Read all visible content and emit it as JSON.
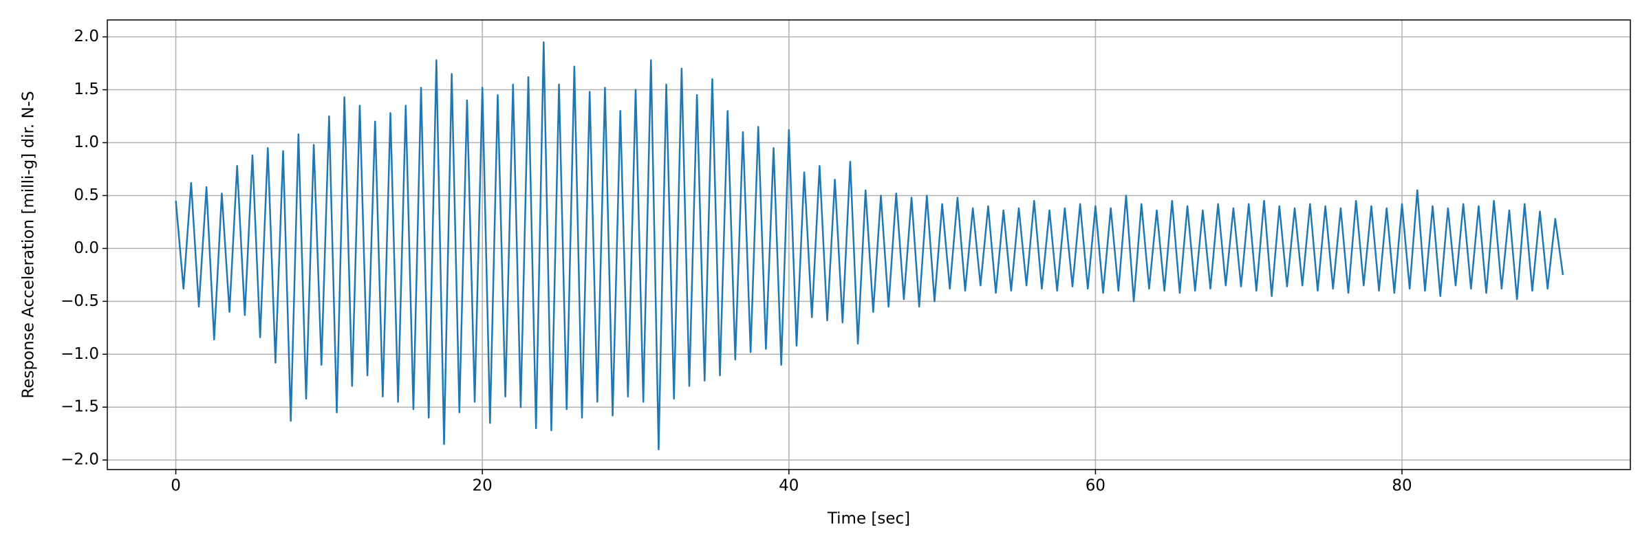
{
  "chart_data": {
    "type": "line",
    "xlabel": "Time [sec]",
    "ylabel": "Response Acceleration [milli-g] dir. N-S",
    "xlim": [
      -4.47,
      94.9
    ],
    "ylim": [
      -2.09,
      2.16
    ],
    "xticks": [
      0,
      20,
      40,
      60,
      80
    ],
    "yticks": [
      {
        "value": -2,
        "label": "−2.0"
      },
      {
        "value": -1.5,
        "label": "−1.5"
      },
      {
        "value": -1,
        "label": "−1.0"
      },
      {
        "value": -0.5,
        "label": "−0.5"
      },
      {
        "value": 0,
        "label": "0.0"
      },
      0.5,
      {
        "value": 1,
        "label": "1.0"
      },
      1.5,
      {
        "value": 2,
        "label": "2.0"
      }
    ],
    "grid": true,
    "x": [
      0,
      0.5,
      1,
      1.5,
      2,
      2.5,
      3,
      3.5,
      4,
      4.5,
      5,
      5.5,
      6,
      6.5,
      7,
      7.5,
      8,
      8.5,
      9,
      9.5,
      10,
      10.5,
      11,
      11.5,
      12,
      12.5,
      13,
      13.5,
      14,
      14.5,
      15,
      15.5,
      16,
      16.5,
      17,
      17.5,
      18,
      18.5,
      19,
      19.5,
      20,
      20.5,
      21,
      21.5,
      22,
      22.5,
      23,
      23.5,
      24,
      24.5,
      25,
      25.5,
      26,
      26.5,
      27,
      27.5,
      28,
      28.5,
      29,
      29.5,
      30,
      30.5,
      31,
      31.5,
      32,
      32.5,
      33,
      33.5,
      34,
      34.5,
      35,
      35.5,
      36,
      36.5,
      37,
      37.5,
      38,
      38.5,
      39,
      39.5,
      40,
      40.5,
      41,
      41.5,
      42,
      42.5,
      43,
      43.5,
      44,
      44.5,
      45,
      45.5,
      46,
      46.5,
      47,
      47.5,
      48,
      48.5,
      49,
      49.5,
      50,
      50.5,
      51,
      51.5,
      52,
      52.5,
      53,
      53.5,
      54,
      54.5,
      55,
      55.5,
      56,
      56.5,
      57,
      57.5,
      58,
      58.5,
      59,
      59.5,
      60,
      60.5,
      61,
      61.5,
      62,
      62.5,
      63,
      63.5,
      64,
      64.5,
      65,
      65.5,
      66,
      66.5,
      67,
      67.5,
      68,
      68.5,
      69,
      69.5,
      70,
      70.5,
      71,
      71.5,
      72,
      72.5,
      73,
      73.5,
      74,
      74.5,
      75,
      75.5,
      76,
      76.5,
      77,
      77.5,
      78,
      78.5,
      79,
      79.5,
      80,
      80.5,
      81,
      81.5,
      82,
      82.5,
      83,
      83.5,
      84,
      84.5,
      85,
      85.5,
      86,
      86.5,
      87,
      87.5,
      88,
      88.5,
      89,
      89.5,
      90,
      90.5
    ],
    "series": [
      {
        "color": "#1f77b4",
        "values": [
          0.45,
          -0.38,
          0.62,
          -0.55,
          0.58,
          -0.86,
          0.52,
          -0.6,
          0.78,
          -0.63,
          0.88,
          -0.84,
          0.95,
          -1.08,
          0.92,
          -1.63,
          1.08,
          -1.42,
          0.98,
          -1.1,
          1.25,
          -1.55,
          1.43,
          -1.3,
          1.35,
          -1.2,
          1.2,
          -1.4,
          1.28,
          -1.45,
          1.35,
          -1.52,
          1.52,
          -1.6,
          1.78,
          -1.85,
          1.65,
          -1.55,
          1.4,
          -1.45,
          1.52,
          -1.65,
          1.45,
          -1.4,
          1.55,
          -1.5,
          1.62,
          -1.7,
          1.95,
          -1.72,
          1.55,
          -1.52,
          1.72,
          -1.6,
          1.48,
          -1.45,
          1.52,
          -1.58,
          1.3,
          -1.4,
          1.5,
          -1.45,
          1.78,
          -1.9,
          1.55,
          -1.42,
          1.7,
          -1.3,
          1.45,
          -1.25,
          1.6,
          -1.2,
          1.3,
          -1.05,
          1.1,
          -0.98,
          1.15,
          -0.95,
          0.95,
          -1.1,
          1.12,
          -0.92,
          0.72,
          -0.65,
          0.78,
          -0.68,
          0.65,
          -0.7,
          0.82,
          -0.9,
          0.55,
          -0.6,
          0.5,
          -0.55,
          0.52,
          -0.48,
          0.48,
          -0.55,
          0.5,
          -0.5,
          0.42,
          -0.38,
          0.48,
          -0.4,
          0.38,
          -0.35,
          0.4,
          -0.42,
          0.36,
          -0.4,
          0.38,
          -0.35,
          0.45,
          -0.38,
          0.36,
          -0.4,
          0.38,
          -0.36,
          0.42,
          -0.38,
          0.4,
          -0.42,
          0.38,
          -0.4,
          0.5,
          -0.5,
          0.42,
          -0.38,
          0.36,
          -0.4,
          0.45,
          -0.42,
          0.4,
          -0.4,
          0.36,
          -0.38,
          0.42,
          -0.35,
          0.38,
          -0.36,
          0.42,
          -0.4,
          0.45,
          -0.45,
          0.4,
          -0.36,
          0.38,
          -0.35,
          0.42,
          -0.4,
          0.4,
          -0.38,
          0.38,
          -0.42,
          0.45,
          -0.35,
          0.4,
          -0.4,
          0.38,
          -0.42,
          0.42,
          -0.38,
          0.55,
          -0.4,
          0.4,
          -0.45,
          0.38,
          -0.35,
          0.42,
          -0.38,
          0.4,
          -0.42,
          0.45,
          -0.38,
          0.36,
          -0.48,
          0.42,
          -0.4,
          0.35,
          -0.38,
          0.28,
          -0.25
        ]
      }
    ]
  }
}
